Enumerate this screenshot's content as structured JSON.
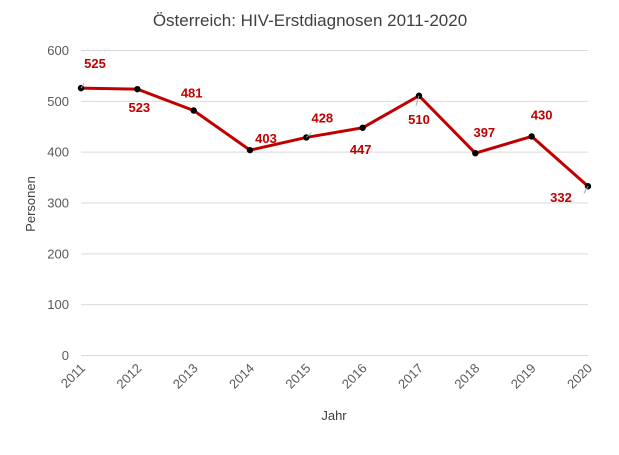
{
  "chart_data": {
    "type": "line",
    "title": "Österreich: HIV-Erstdiagnosen 2011-2020",
    "xlabel": "Jahr",
    "ylabel": "Personen",
    "ylim": [
      0,
      600
    ],
    "yticks": [
      "0",
      "100",
      "200",
      "300",
      "400",
      "500",
      "600"
    ],
    "categories": [
      "2011",
      "2012",
      "2013",
      "2014",
      "2015",
      "2016",
      "2017",
      "2018",
      "2019",
      "2020"
    ],
    "series": [
      {
        "values": [
          525,
          523,
          481,
          403,
          428,
          447,
          510,
          397,
          430,
          332
        ],
        "labels": [
          "525",
          "523",
          "481",
          "403",
          "428",
          "447",
          "510",
          "397",
          "430",
          "332"
        ],
        "color": "#c00000",
        "marker_color": "#000000"
      }
    ],
    "grid": true,
    "legend": "none"
  }
}
